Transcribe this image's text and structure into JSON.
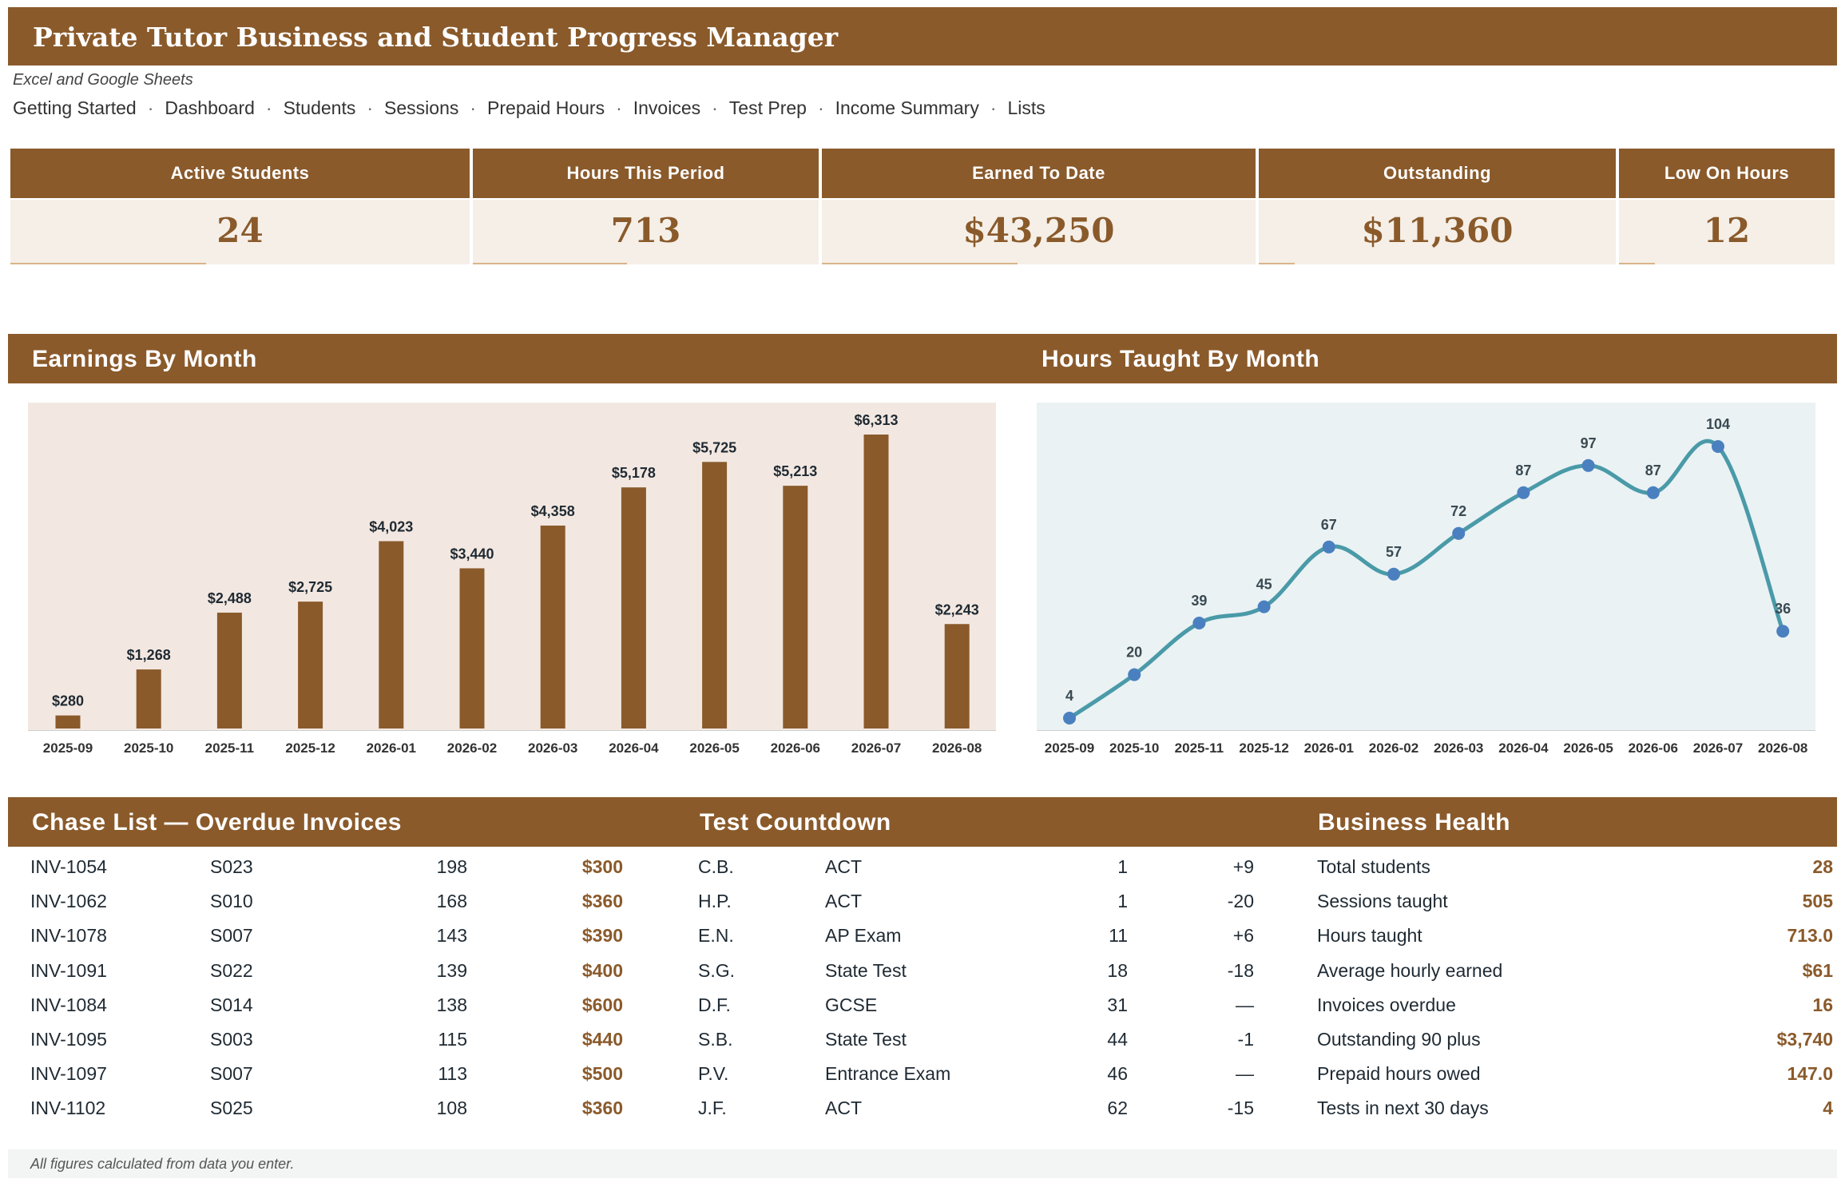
{
  "title": "Private Tutor Business and Student Progress Manager",
  "subtitle": "Excel and Google Sheets",
  "nav": {
    "items": [
      "Getting Started",
      "Dashboard",
      "Students",
      "Sessions",
      "Prepaid Hours",
      "Invoices",
      "Test Prep",
      "Income Summary",
      "Lists"
    ],
    "separator": "·"
  },
  "kpis": [
    {
      "label": "Active Students",
      "value": "24"
    },
    {
      "label": "Hours This Period",
      "value": "713"
    },
    {
      "label": "Earned To Date",
      "value": "$43,250"
    },
    {
      "label": "Outstanding",
      "value": "$11,360"
    },
    {
      "label": "Low On Hours",
      "value": "12"
    }
  ],
  "sections": {
    "earnings": "Earnings By Month",
    "hours": "Hours Taught By Month",
    "chase": "Chase List — Overdue Invoices",
    "countdown": "Test Countdown",
    "health": "Business Health"
  },
  "chart_data": [
    {
      "type": "bar",
      "title": "Earnings By Month",
      "categories": [
        "2025-09",
        "2025-10",
        "2025-11",
        "2025-12",
        "2026-01",
        "2026-02",
        "2026-03",
        "2026-04",
        "2026-05",
        "2026-06",
        "2026-07",
        "2026-08"
      ],
      "values": [
        280,
        1268,
        2488,
        2725,
        4023,
        3440,
        4358,
        5178,
        5725,
        5213,
        6313,
        2243
      ],
      "labels": [
        "$280",
        "$1,268",
        "$2,488",
        "$2,725",
        "$4,023",
        "$3,440",
        "$4,358",
        "$5,178",
        "$5,725",
        "$5,213",
        "$6,313",
        "$2,243"
      ],
      "ylim": [
        0,
        6313
      ],
      "grid": false,
      "color": "#8a5a2b"
    },
    {
      "type": "line",
      "title": "Hours Taught By Month",
      "categories": [
        "2025-09",
        "2025-10",
        "2025-11",
        "2025-12",
        "2026-01",
        "2026-02",
        "2026-03",
        "2026-04",
        "2026-05",
        "2026-06",
        "2026-07",
        "2026-08"
      ],
      "values": [
        4,
        20,
        39,
        45,
        67,
        57,
        72,
        87,
        97,
        87,
        104,
        36
      ],
      "ylim": [
        0,
        104
      ],
      "grid": false,
      "line_color": "#4a9aa8",
      "marker_color": "#4a80bf"
    }
  ],
  "chase_list": [
    {
      "invoice": "INV-1054",
      "student": "S023",
      "days": "198",
      "amount": "$300"
    },
    {
      "invoice": "INV-1062",
      "student": "S010",
      "days": "168",
      "amount": "$360"
    },
    {
      "invoice": "INV-1078",
      "student": "S007",
      "days": "143",
      "amount": "$390"
    },
    {
      "invoice": "INV-1091",
      "student": "S022",
      "days": "139",
      "amount": "$400"
    },
    {
      "invoice": "INV-1084",
      "student": "S014",
      "days": "138",
      "amount": "$600"
    },
    {
      "invoice": "INV-1095",
      "student": "S003",
      "days": "115",
      "amount": "$440"
    },
    {
      "invoice": "INV-1097",
      "student": "S007",
      "days": "113",
      "amount": "$500"
    },
    {
      "invoice": "INV-1102",
      "student": "S025",
      "days": "108",
      "amount": "$360"
    }
  ],
  "test_countdown": [
    {
      "initials": "C.B.",
      "test": "ACT",
      "days": "1",
      "change": "+9"
    },
    {
      "initials": "H.P.",
      "test": "ACT",
      "days": "1",
      "change": "-20"
    },
    {
      "initials": "E.N.",
      "test": "AP Exam",
      "days": "11",
      "change": "+6"
    },
    {
      "initials": "S.G.",
      "test": "State Test",
      "days": "18",
      "change": "-18"
    },
    {
      "initials": "D.F.",
      "test": "GCSE",
      "days": "31",
      "change": "—"
    },
    {
      "initials": "S.B.",
      "test": "State Test",
      "days": "44",
      "change": "-1"
    },
    {
      "initials": "P.V.",
      "test": "Entrance Exam",
      "days": "46",
      "change": "—"
    },
    {
      "initials": "J.F.",
      "test": "ACT",
      "days": "62",
      "change": "-15"
    }
  ],
  "business_health": [
    {
      "label": "Total students",
      "value": "28"
    },
    {
      "label": "Sessions taught",
      "value": "505"
    },
    {
      "label": "Hours taught",
      "value": "713.0"
    },
    {
      "label": "Average hourly earned",
      "value": "$61"
    },
    {
      "label": "Invoices overdue",
      "value": "16"
    },
    {
      "label": "Outstanding 90 plus",
      "value": "$3,740"
    },
    {
      "label": "Prepaid hours owed",
      "value": "147.0"
    },
    {
      "label": "Tests in next 30 days",
      "value": "4"
    }
  ],
  "footer": "All figures calculated from data you enter.",
  "colors": {
    "brand": "#8a5a2b",
    "kpi_bg": "#f5efe7",
    "chart1_bg": "#f3e8e1",
    "chart2_bg": "#eaf2f4"
  }
}
